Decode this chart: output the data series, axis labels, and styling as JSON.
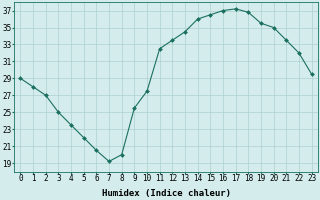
{
  "x": [
    0,
    1,
    2,
    3,
    4,
    5,
    6,
    7,
    8,
    9,
    10,
    11,
    12,
    13,
    14,
    15,
    16,
    17,
    18,
    19,
    20,
    21,
    22,
    23
  ],
  "y": [
    29,
    28,
    27,
    25,
    23.5,
    22,
    20.5,
    19.2,
    20,
    25.5,
    27.5,
    32.5,
    33.5,
    34.5,
    36,
    36.5,
    37,
    37.2,
    36.8,
    35.5,
    35,
    33.5,
    32,
    29.5
  ],
  "line_color": "#1a7060",
  "marker": "D",
  "marker_size": 2.0,
  "background_color": "#d4ecec",
  "grid_color": "#aed0d0",
  "xlabel": "Humidex (Indice chaleur)",
  "ylim": [
    18,
    38
  ],
  "xlim": [
    -0.5,
    23.5
  ],
  "yticks": [
    19,
    21,
    23,
    25,
    27,
    29,
    31,
    33,
    35,
    37
  ],
  "xticks": [
    0,
    1,
    2,
    3,
    4,
    5,
    6,
    7,
    8,
    9,
    10,
    11,
    12,
    13,
    14,
    15,
    16,
    17,
    18,
    19,
    20,
    21,
    22,
    23
  ],
  "xlabel_fontsize": 6.5,
  "tick_fontsize": 5.5,
  "linewidth": 0.8
}
